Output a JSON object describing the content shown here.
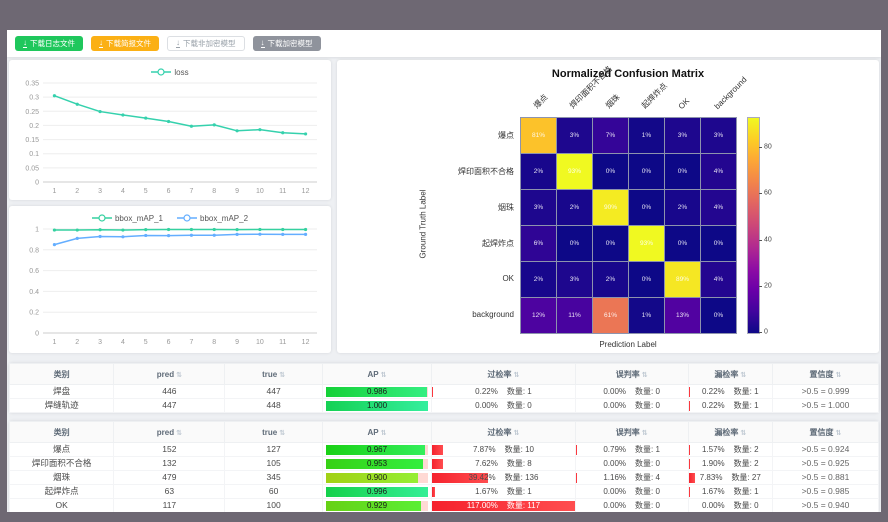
{
  "toolbar": {
    "download_icon": "↓",
    "buttons": [
      {
        "label": "下载日志文件",
        "variant": "green",
        "name": "download-log-button"
      },
      {
        "label": "下载简报文件",
        "variant": "orange",
        "name": "download-report-button"
      },
      {
        "label": "下载非加密模型",
        "variant": "plain",
        "name": "download-plain-model-button"
      },
      {
        "label": "下载加密模型",
        "variant": "gray",
        "name": "download-encrypted-model-button"
      }
    ]
  },
  "chart_data": [
    {
      "id": "loss",
      "type": "line",
      "title": "",
      "x": [
        1,
        2,
        3,
        4,
        5,
        6,
        7,
        8,
        9,
        10,
        11,
        12
      ],
      "series": [
        {
          "name": "loss",
          "color": "#35d1ad",
          "values": [
            0.305,
            0.275,
            0.249,
            0.237,
            0.226,
            0.214,
            0.197,
            0.202,
            0.181,
            0.185,
            0.174,
            0.17
          ]
        }
      ],
      "ylim": [
        0,
        0.35
      ],
      "yticks": [
        0,
        0.05,
        0.1,
        0.15,
        0.2,
        0.25,
        0.3,
        0.35
      ],
      "grid": true,
      "legend_position": "top"
    },
    {
      "id": "map",
      "type": "line",
      "title": "",
      "x": [
        1,
        2,
        3,
        4,
        5,
        6,
        7,
        8,
        9,
        10,
        11,
        12
      ],
      "series": [
        {
          "name": "bbox_mAP_1",
          "color": "#35d1a0",
          "values": [
            0.99,
            0.99,
            0.993,
            0.99,
            0.994,
            0.995,
            0.995,
            0.995,
            0.994,
            0.995,
            0.995,
            0.995
          ]
        },
        {
          "name": "bbox_mAP_2",
          "color": "#64aeff",
          "values": [
            0.85,
            0.91,
            0.928,
            0.925,
            0.938,
            0.936,
            0.94,
            0.94,
            0.948,
            0.95,
            0.948,
            0.948
          ]
        }
      ],
      "ylim": [
        0,
        1
      ],
      "yticks": [
        0,
        0.2,
        0.4,
        0.6,
        0.8,
        1
      ],
      "grid": true,
      "legend_position": "top"
    },
    {
      "id": "confusion",
      "type": "heatmap",
      "title": "Normalized Confusion Matrix",
      "xlabel": "Prediction Label",
      "ylabel": "Ground Truth Label",
      "categories": [
        "爆点",
        "焊印面积不合格",
        "烟珠",
        "起焊炸点",
        "OK",
        "background"
      ],
      "rows": [
        [
          81,
          3,
          7,
          1,
          3,
          3
        ],
        [
          2,
          93,
          0,
          0,
          0,
          4
        ],
        [
          3,
          2,
          90,
          0,
          2,
          4
        ],
        [
          6,
          0,
          0,
          93,
          0,
          0
        ],
        [
          2,
          3,
          2,
          0,
          89,
          4
        ],
        [
          12,
          11,
          61,
          1,
          13,
          0
        ]
      ],
      "unit": "%",
      "vmax": 93,
      "colorbar_ticks": [
        80,
        60,
        40,
        20,
        0
      ],
      "colormap": "plasma"
    }
  ],
  "tables": {
    "sort_icon": "⇅",
    "count_label": "数量:",
    "headers": [
      {
        "label": "类别",
        "sortable": false
      },
      {
        "label": "pred",
        "sortable": true
      },
      {
        "label": "true",
        "sortable": true
      },
      {
        "label": "AP",
        "sortable": true
      },
      {
        "label": "过检率",
        "sortable": true
      },
      {
        "label": "误判率",
        "sortable": true
      },
      {
        "label": "漏检率",
        "sortable": true
      },
      {
        "label": "置信度",
        "sortable": true
      }
    ],
    "groups": [
      {
        "rows": [
          {
            "category": "焊盘",
            "pred": "446",
            "true": "447",
            "ap": "0.986",
            "over_pct": "0.22%",
            "over_n": "1",
            "mis_pct": "0.00%",
            "mis_n": "0",
            "miss_pct": "0.22%",
            "miss_n": "1",
            "conf": ">0.5 = 0.999"
          },
          {
            "category": "焊缝轨迹",
            "pred": "447",
            "true": "448",
            "ap": "1.000",
            "over_pct": "0.00%",
            "over_n": "0",
            "mis_pct": "0.00%",
            "mis_n": "0",
            "miss_pct": "0.22%",
            "miss_n": "1",
            "conf": ">0.5 = 1.000"
          }
        ]
      },
      {
        "rows": [
          {
            "category": "爆点",
            "pred": "152",
            "true": "127",
            "ap": "0.967",
            "over_pct": "7.87%",
            "over_n": "10",
            "mis_pct": "0.79%",
            "mis_n": "1",
            "miss_pct": "1.57%",
            "miss_n": "2",
            "conf": ">0.5 = 0.924"
          },
          {
            "category": "焊印面积不合格",
            "pred": "132",
            "true": "105",
            "ap": "0.953",
            "over_pct": "7.62%",
            "over_n": "8",
            "mis_pct": "0.00%",
            "mis_n": "0",
            "miss_pct": "1.90%",
            "miss_n": "2",
            "conf": ">0.5 = 0.925"
          },
          {
            "category": "烟珠",
            "pred": "479",
            "true": "345",
            "ap": "0.900",
            "over_pct": "39.42%",
            "over_n": "136",
            "mis_pct": "1.16%",
            "mis_n": "4",
            "miss_pct": "7.83%",
            "miss_n": "27",
            "conf": ">0.5 = 0.881"
          },
          {
            "category": "起焊炸点",
            "pred": "63",
            "true": "60",
            "ap": "0.996",
            "over_pct": "1.67%",
            "over_n": "1",
            "mis_pct": "0.00%",
            "mis_n": "0",
            "miss_pct": "1.67%",
            "miss_n": "1",
            "conf": ">0.5 = 0.985"
          },
          {
            "category": "OK",
            "pred": "117",
            "true": "100",
            "ap": "0.929",
            "over_pct": "117.00%",
            "over_n": "117",
            "mis_pct": "0.00%",
            "mis_n": "0",
            "miss_pct": "0.00%",
            "miss_n": "0",
            "conf": ">0.5 = 0.940"
          }
        ]
      }
    ]
  }
}
